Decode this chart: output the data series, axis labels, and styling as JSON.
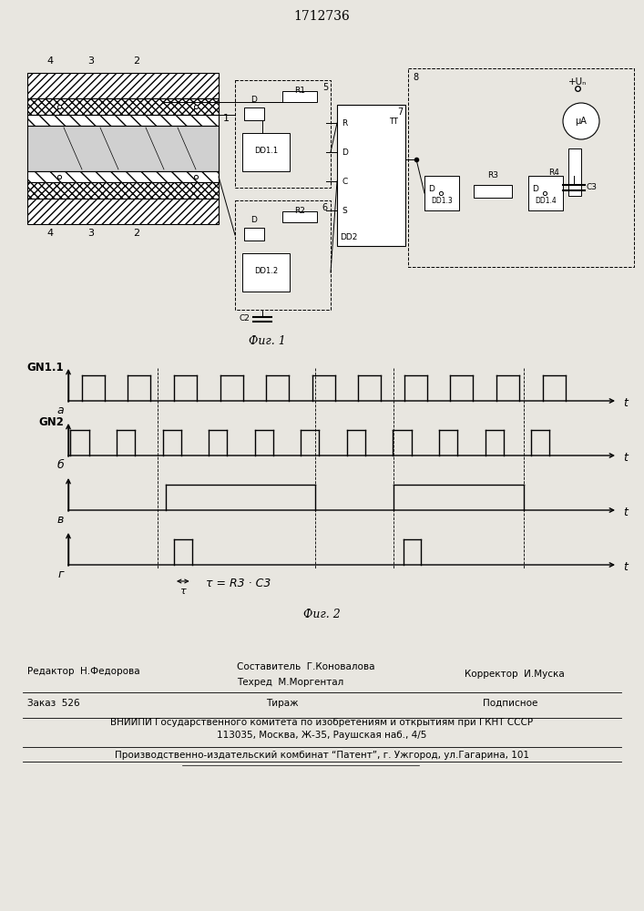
{
  "title": "1712736",
  "fig1_caption": "Фиг. 1",
  "fig2_caption": "Фиг. 2",
  "bg_color": "#e8e6e0",
  "line_color": "#000000",
  "signal_a_label": "GN1.1",
  "signal_b_label": "GN2",
  "row_a_label": "a",
  "row_b_label": "б",
  "row_v_label": "в",
  "row_g_label": "г",
  "tau_label": "τ",
  "tau_eq_label": "τ = R3 · C3",
  "t_label": "t",
  "footer_line1_left": "Редактор  Н.Федорова",
  "footer_line1_mid": "Составитель  Г.Коновалова",
  "footer_line1_right": "Корректор  И.Муска",
  "footer_line1_mid2": "Техред  М.Моргентал",
  "footer_line2_left": "Заказ  526",
  "footer_line2_mid": "Тираж",
  "footer_line2_right": "Подписное",
  "footer_line3": "ВНИИПИ Государственного комитета по изобретениям и открытиям при ГКНТ СССР",
  "footer_line4": "113035, Москва, Ж-35, Раушская наб., 4/5",
  "footer_line5": "Производственно-издательский комбинат “Патент”, г. Ужгород, ул.Гагарина, 101"
}
